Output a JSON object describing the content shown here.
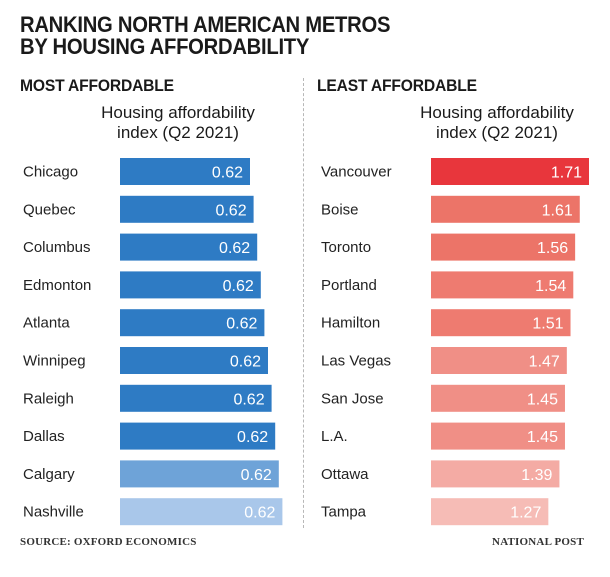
{
  "title_lines": [
    "RANKING NORTH AMERICAN METROS",
    "BY HOUSING AFFORDABILITY"
  ],
  "source": "SOURCE: OXFORD ECONOMICS",
  "credit": "NATIONAL POST",
  "colors": {
    "most": [
      "#2e7bc4",
      "#2e7bc4",
      "#2e7bc4",
      "#2e7bc4",
      "#2e7bc4",
      "#2e7bc4",
      "#2e7bc4",
      "#2e7bc4",
      "#6ea3d8",
      "#a9c7ea"
    ],
    "least": [
      "#e8363c",
      "#ec7468",
      "#ec7468",
      "#ee7b70",
      "#ee7b70",
      "#f08f86",
      "#f08f86",
      "#f08f86",
      "#f4aba4",
      "#f6bcb6"
    ]
  },
  "chart_data": [
    {
      "type": "bar",
      "orientation": "horizontal",
      "title": "MOST AFFORDABLE",
      "value_label": "Housing affordability index (Q2 2021)",
      "value_label_lines": [
        "Housing affordability",
        "index (Q2 2021)"
      ],
      "categories": [
        "Chicago",
        "Quebec",
        "Columbus",
        "Edmonton",
        "Atlanta",
        "Winnipeg",
        "Raleigh",
        "Dallas",
        "Calgary",
        "Nashville"
      ],
      "values": [
        0.62,
        0.62,
        0.62,
        0.62,
        0.62,
        0.62,
        0.62,
        0.62,
        0.62,
        0.62
      ],
      "value_labels": [
        "0.62",
        "0.62",
        "0.62",
        "0.62",
        "0.62",
        "0.62",
        "0.62",
        "0.62",
        "0.62",
        "0.62"
      ]
    },
    {
      "type": "bar",
      "orientation": "horizontal",
      "title": "LEAST AFFORDABLE",
      "value_label": "Housing affordability index (Q2 2021)",
      "value_label_lines": [
        "Housing affordability",
        "index (Q2 2021)"
      ],
      "categories": [
        "Vancouver",
        "Boise",
        "Toronto",
        "Portland",
        "Hamilton",
        "Las Vegas",
        "San Jose",
        "L.A.",
        "Ottawa",
        "Tampa"
      ],
      "values": [
        1.71,
        1.61,
        1.56,
        1.54,
        1.51,
        1.47,
        1.45,
        1.45,
        1.39,
        1.27
      ],
      "value_labels": [
        "1.71",
        "1.61",
        "1.56",
        "1.54",
        "1.51",
        "1.47",
        "1.45",
        "1.45",
        "1.39",
        "1.27"
      ]
    }
  ]
}
